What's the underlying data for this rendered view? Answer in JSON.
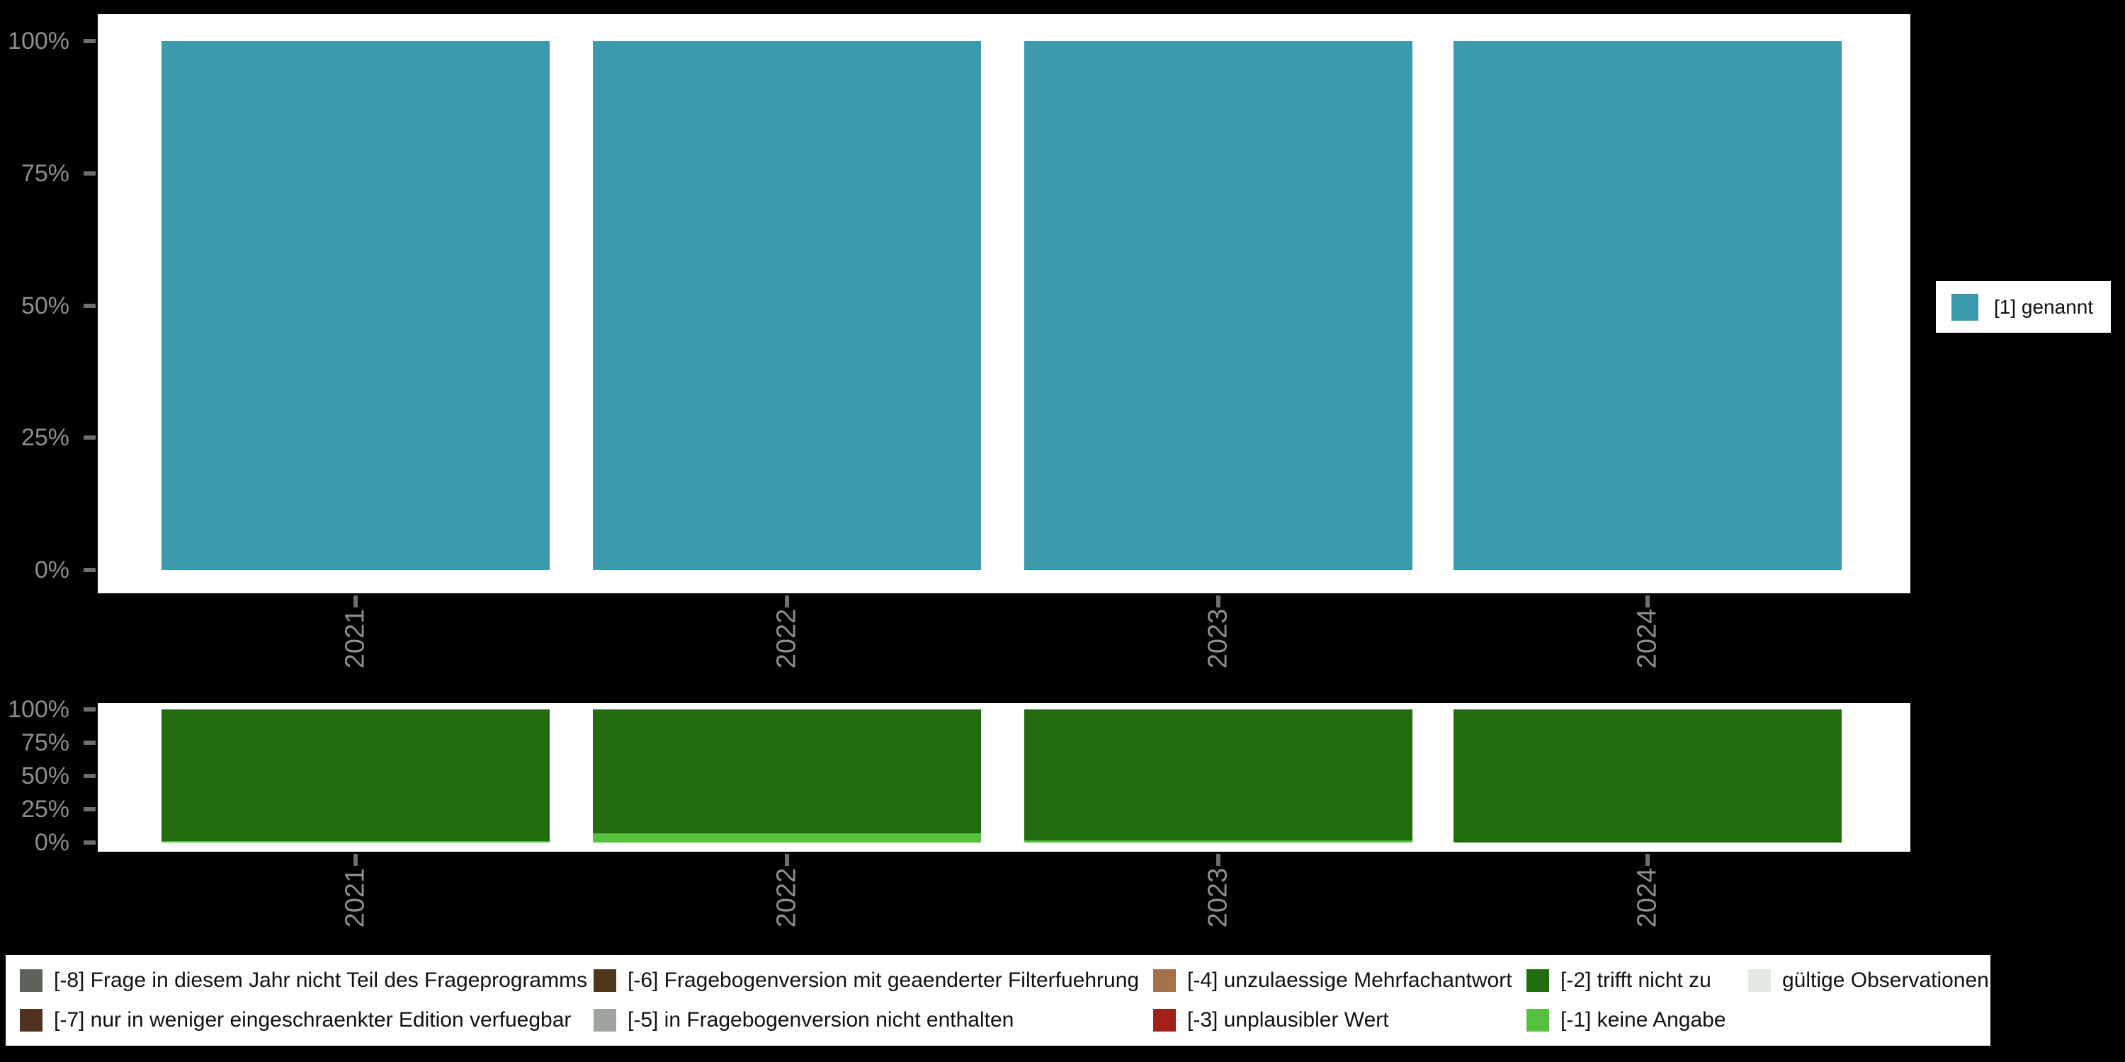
{
  "colors": {
    "background": "#000000",
    "panel_background": "#ffffff",
    "axis_text": "#8e8e8e",
    "tick_mark": "#6e6e6e",
    "legend_text": "#111111"
  },
  "top_panel": {
    "y_ticks": [
      {
        "label": "100%",
        "value": 100
      },
      {
        "label": "75%",
        "value": 75
      },
      {
        "label": "50%",
        "value": 50
      },
      {
        "label": "25%",
        "value": 25
      },
      {
        "label": "0%",
        "value": 0
      }
    ],
    "legend": {
      "label": "[1] genannt",
      "color": "#3b9aae"
    }
  },
  "bottom_panel": {
    "y_ticks": [
      {
        "label": "100%",
        "value": 100
      },
      {
        "label": "75%",
        "value": 75
      },
      {
        "label": "50%",
        "value": 50
      },
      {
        "label": "25%",
        "value": 25
      },
      {
        "label": "0%",
        "value": 0
      }
    ]
  },
  "chart_data": [
    {
      "type": "bar",
      "stacked": true,
      "title": "",
      "categories": [
        "2021",
        "2022",
        "2023",
        "2024"
      ],
      "series": [
        {
          "name": "[1] genannt",
          "color": "#3b9aae",
          "values": [
            100,
            100,
            100,
            100
          ]
        }
      ],
      "xlabel": "",
      "ylabel": "",
      "ylim": [
        0,
        100
      ],
      "y_tick_labels": [
        "0%",
        "25%",
        "50%",
        "75%",
        "100%"
      ],
      "unit": "percent",
      "grid": false,
      "legend_position": "right"
    },
    {
      "type": "bar",
      "stacked": true,
      "title": "",
      "categories": [
        "2021",
        "2022",
        "2023",
        "2024"
      ],
      "series": [
        {
          "name": "[-1] keine Angabe",
          "color": "#55c13e",
          "values": [
            1,
            7,
            1.5,
            0
          ]
        },
        {
          "name": "[-2] trifft nicht zu",
          "color": "#226b0e",
          "values": [
            99,
            93,
            98.5,
            100
          ]
        }
      ],
      "xlabel": "",
      "ylabel": "",
      "ylim": [
        0,
        100
      ],
      "y_tick_labels": [
        "0%",
        "25%",
        "50%",
        "75%",
        "100%"
      ],
      "unit": "percent",
      "grid": false,
      "legend_position": "bottom"
    }
  ],
  "missing_legend": {
    "columns": [
      [
        {
          "label": "[-8] Frage in diesem Jahr nicht Teil des Frageprogramms",
          "color": "#5b6257"
        },
        {
          "label": "[-7] nur in weniger eingeschraenkter Edition verfuegbar",
          "color": "#50301e"
        }
      ],
      [
        {
          "label": "[-6] Fragebogenversion mit geaenderter Filterfuehrung",
          "color": "#4f381e"
        },
        {
          "label": "[-5] in Fragebogenversion nicht enthalten",
          "color": "#9fa39e"
        }
      ],
      [
        {
          "label": "[-4] unzulaessige Mehrfachantwort",
          "color": "#a4714a"
        },
        {
          "label": "[-3] unplausibler Wert",
          "color": "#a32019"
        }
      ],
      [
        {
          "label": "[-2] trifft nicht zu",
          "color": "#226b0e"
        },
        {
          "label": "[-1] keine Angabe",
          "color": "#55c13e"
        }
      ],
      [
        {
          "label": "gültige Observationen",
          "color": "#e4e9e2"
        }
      ]
    ]
  }
}
